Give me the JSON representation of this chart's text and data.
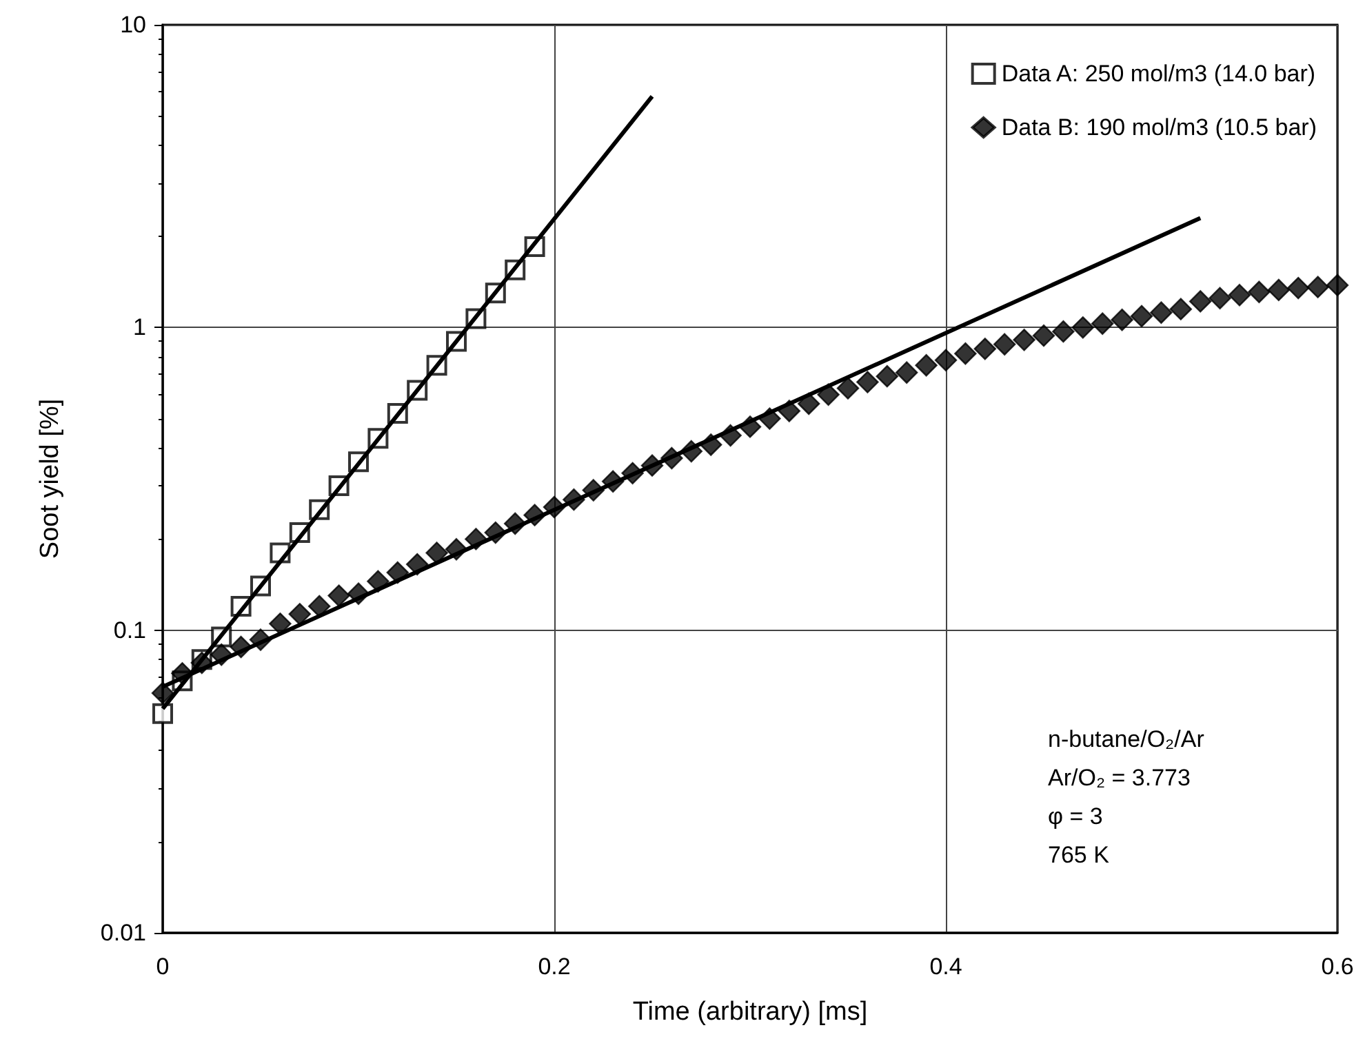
{
  "chart_data": {
    "type": "scatter",
    "xlabel": "Time (arbitrary) [ms]",
    "ylabel": "Soot yield [%]",
    "xlim": [
      0,
      0.6
    ],
    "xticks": [
      0,
      0.2,
      0.4,
      0.6
    ],
    "ylim": [
      0.01,
      10
    ],
    "yticks": [
      0.01,
      0.1,
      1,
      10
    ],
    "log": "y",
    "grid": true,
    "legend": "top right",
    "series": [
      {
        "name": "Data A: 250 mol/m3 (14.0 bar)",
        "color": "#000000",
        "marker": "square",
        "x": [
          0,
          0.01,
          0.02,
          0.03,
          0.04,
          0.05,
          0.06,
          0.07,
          0.08,
          0.09,
          0.1,
          0.11,
          0.12,
          0.13,
          0.14,
          0.15,
          0.16,
          0.17,
          0.18,
          0.19
        ],
        "values": [
          0.053,
          0.068,
          0.08,
          0.095,
          0.12,
          0.14,
          0.18,
          0.21,
          0.25,
          0.3,
          0.36,
          0.43,
          0.52,
          0.62,
          0.75,
          0.9,
          1.07,
          1.3,
          1.55,
          1.85
        ]
      },
      {
        "name": "Data B: 190 mol/m3 (10.5 bar)",
        "color": "#000000",
        "marker": "diamond",
        "x": [
          0,
          0.01,
          0.02,
          0.03,
          0.04,
          0.05,
          0.06,
          0.07,
          0.08,
          0.09,
          0.1,
          0.11,
          0.12,
          0.13,
          0.14,
          0.15,
          0.16,
          0.17,
          0.18,
          0.19,
          0.2,
          0.21,
          0.22,
          0.23,
          0.24,
          0.25,
          0.26,
          0.27,
          0.28,
          0.29,
          0.3,
          0.31,
          0.32,
          0.33,
          0.34,
          0.35,
          0.36,
          0.37,
          0.38,
          0.39,
          0.4,
          0.41,
          0.42,
          0.43,
          0.44,
          0.45,
          0.46,
          0.47,
          0.48,
          0.49,
          0.5,
          0.51,
          0.52,
          0.53,
          0.54,
          0.55,
          0.56,
          0.57,
          0.58,
          0.59,
          0.6
        ],
        "values": [
          0.062,
          0.072,
          0.078,
          0.083,
          0.088,
          0.093,
          0.105,
          0.113,
          0.12,
          0.13,
          0.132,
          0.145,
          0.155,
          0.165,
          0.18,
          0.185,
          0.2,
          0.21,
          0.225,
          0.24,
          0.255,
          0.27,
          0.29,
          0.31,
          0.33,
          0.35,
          0.37,
          0.39,
          0.41,
          0.44,
          0.47,
          0.5,
          0.53,
          0.56,
          0.6,
          0.63,
          0.66,
          0.69,
          0.71,
          0.75,
          0.78,
          0.82,
          0.85,
          0.88,
          0.91,
          0.94,
          0.97,
          1.0,
          1.03,
          1.06,
          1.09,
          1.12,
          1.15,
          1.22,
          1.25,
          1.28,
          1.31,
          1.33,
          1.35,
          1.36,
          1.38
        ]
      },
      {
        "type": "line",
        "color": "#000000",
        "marker": "none",
        "x": [
          0,
          0.25
        ],
        "values": [
          0.055,
          5.8
        ]
      },
      {
        "type": "line",
        "color": "#000000",
        "marker": "none",
        "x": [
          0,
          0.53
        ],
        "values": [
          0.065,
          2.3
        ]
      }
    ],
    "annotations": [
      "n-butane/O₂/Ar",
      "Ar/O₂ = 3.773",
      "φ = 3",
      "765 K"
    ]
  }
}
